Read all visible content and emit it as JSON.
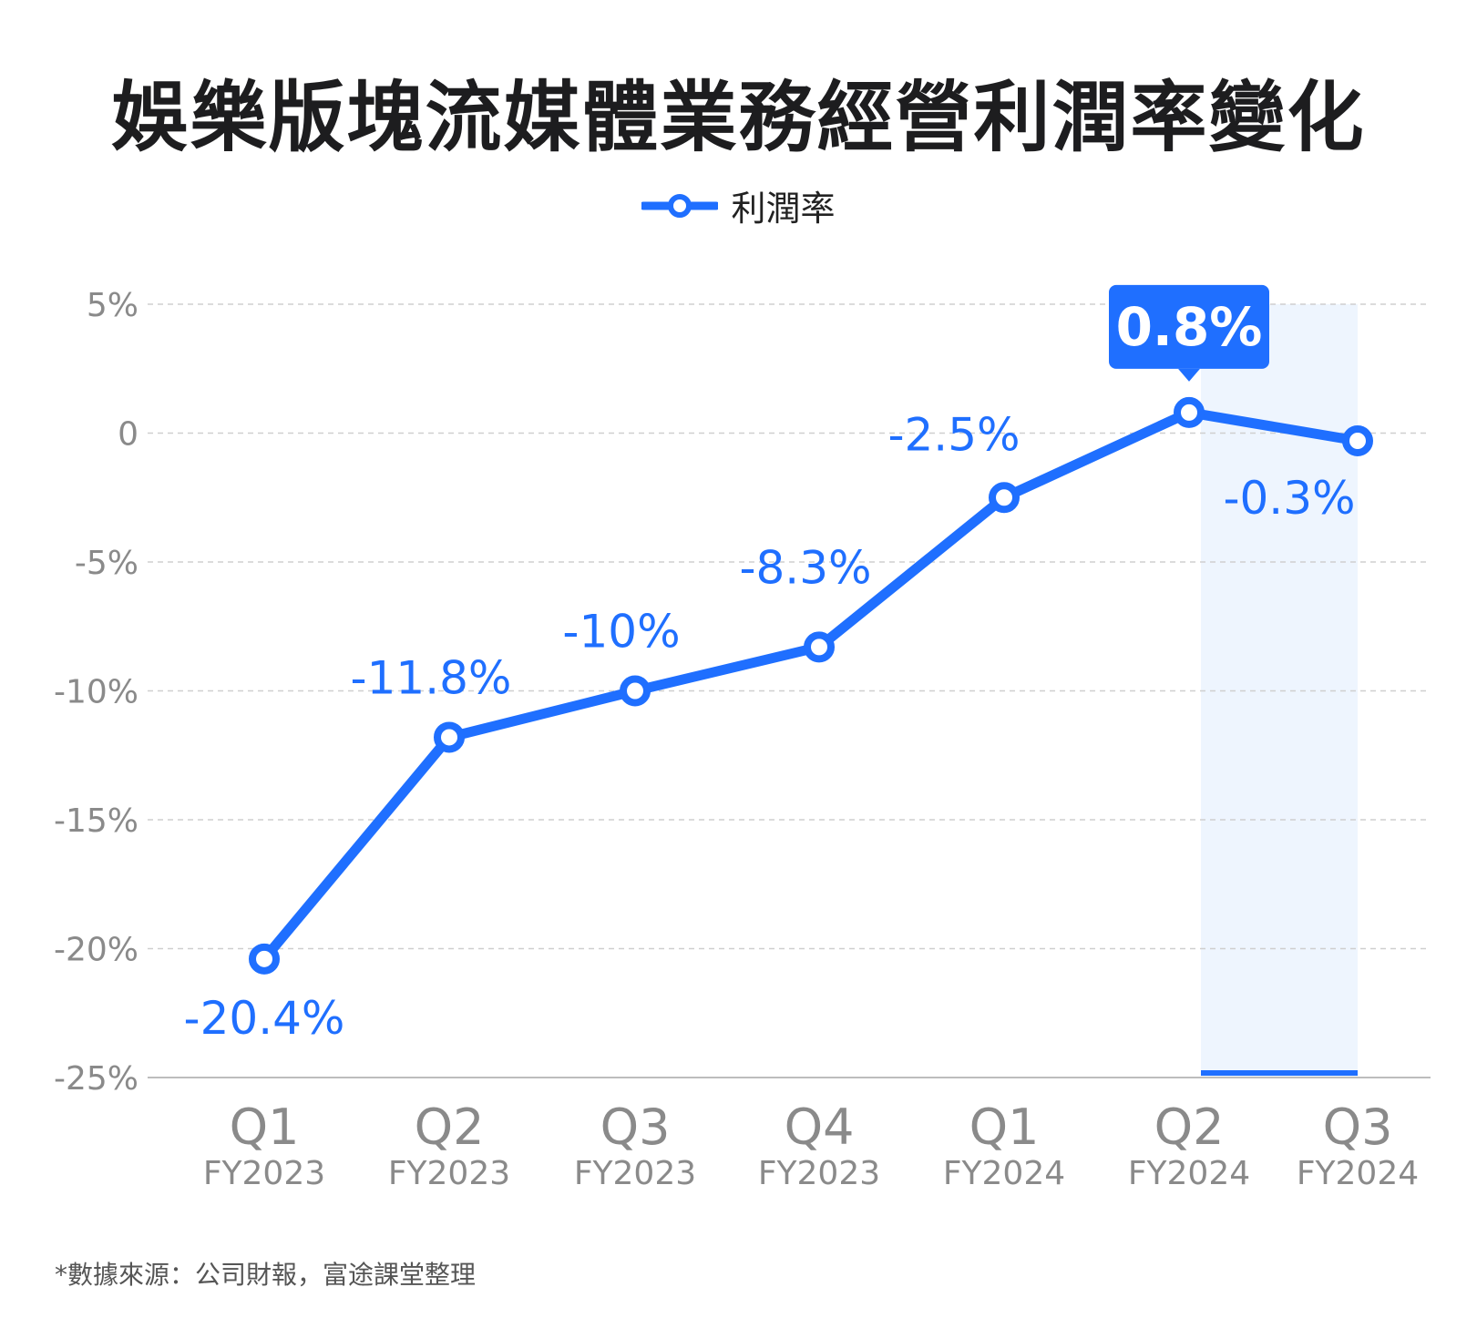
{
  "title": "娛樂版塊流媒體業務經營利潤率變化",
  "legend": {
    "label": "利潤率"
  },
  "source": "*數據來源：公司財報，富途課堂整理",
  "colors": {
    "line": "#1f6fff",
    "highlight_bg": "#eef5fe",
    "grid": "#cfcfcf",
    "axis_text": "#8a8a8a"
  },
  "chart_data": {
    "type": "line",
    "categories": [
      {
        "quarter": "Q1",
        "year": "FY2023"
      },
      {
        "quarter": "Q2",
        "year": "FY2023"
      },
      {
        "quarter": "Q3",
        "year": "FY2023"
      },
      {
        "quarter": "Q4",
        "year": "FY2023"
      },
      {
        "quarter": "Q1",
        "year": "FY2024"
      },
      {
        "quarter": "Q2",
        "year": "FY2024"
      },
      {
        "quarter": "Q3",
        "year": "FY2024"
      }
    ],
    "series": [
      {
        "name": "利潤率",
        "values": [
          -20.4,
          -11.8,
          -10,
          -8.3,
          -2.5,
          0.8,
          -0.3
        ],
        "labels": [
          "-20.4%",
          "-11.8%",
          "-10%",
          "-8.3%",
          "-2.5%",
          "0.8%",
          "-0.3%"
        ]
      }
    ],
    "ylim": [
      -25,
      5
    ],
    "yticks": [
      5,
      0,
      -5,
      -10,
      -15,
      -20,
      -25
    ],
    "ytick_labels": [
      "5%",
      "0",
      "-5%",
      "-10%",
      "-15%",
      "-20%",
      "-25%"
    ],
    "highlight_max_index": 5,
    "shaded_index": 6,
    "grid": true,
    "legend_position": "top-center"
  }
}
